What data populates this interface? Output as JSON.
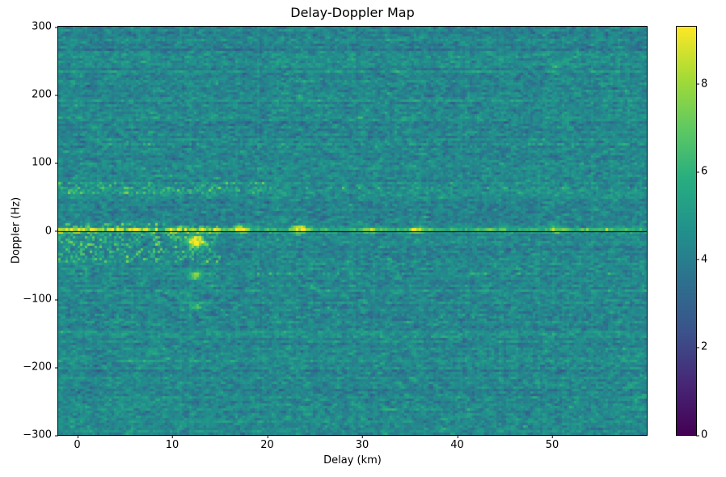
{
  "chart_data": {
    "type": "heatmap",
    "title": "Delay-Doppler Map",
    "xlabel": "Delay (km)",
    "ylabel": "Doppler (Hz)",
    "x_range": [
      -2,
      60
    ],
    "y_range": [
      -300,
      300
    ],
    "x_ticks": [
      0,
      10,
      20,
      30,
      40,
      50
    ],
    "y_ticks": [
      300,
      200,
      100,
      0,
      -100,
      -200,
      -300
    ],
    "colormap": "viridis",
    "value_range": [
      0,
      9.3
    ],
    "colorbar_ticks": [
      0,
      2,
      4,
      6,
      8
    ],
    "zero_doppler_line": {
      "doppler_hz": 0,
      "color": "#000000"
    },
    "noise": {
      "mean": 4.35,
      "pixel_std": 0.55,
      "row_std": 0.22,
      "col_std": 0.08,
      "seed": 42,
      "grid": [
        243,
        168
      ]
    },
    "features": [
      {
        "type": "ridge",
        "doppler": 1,
        "halfwidth": 3,
        "amp": 3.4,
        "fade_after": 15,
        "fade_factor": 0.45,
        "sporadic_prob": 0.03
      },
      {
        "type": "streak",
        "doppler": 62,
        "halfwidth": 3,
        "amp": 1.2,
        "prob": 0.4
      },
      {
        "type": "streak",
        "doppler": -62,
        "halfwidth": 3,
        "amp": 1.0,
        "prob": 0.35
      },
      {
        "type": "streak",
        "doppler": 125,
        "halfwidth": 3,
        "amp": 0.8,
        "prob": 0.3
      },
      {
        "type": "streak",
        "doppler": -125,
        "halfwidth": 3,
        "amp": 0.8,
        "prob": 0.3
      },
      {
        "type": "streak",
        "doppler": 190,
        "halfwidth": 3,
        "amp": 0.5,
        "prob": 0.2
      },
      {
        "type": "streak",
        "doppler": -190,
        "halfwidth": 3,
        "amp": 0.5,
        "prob": 0.2
      },
      {
        "type": "streak",
        "doppler": -250,
        "halfwidth": 3,
        "amp": 0.5,
        "prob": 0.2
      },
      {
        "type": "speckle",
        "delay_range": [
          -2,
          15
        ],
        "doppler_range": [
          -45,
          12
        ],
        "amp": 2.0,
        "prob": 0.3
      },
      {
        "type": "speckle",
        "delay_range": [
          -2,
          20
        ],
        "doppler_range": [
          55,
          70
        ],
        "amp": 1.4,
        "prob": 0.35
      },
      {
        "type": "blob",
        "delay": 12.5,
        "doppler": -15,
        "sx": 0.6,
        "sy": 7,
        "amp": 4.8
      },
      {
        "type": "blob",
        "delay": 12.4,
        "doppler": -65,
        "sx": 0.5,
        "sy": 5,
        "amp": 3.2
      },
      {
        "type": "blob",
        "delay": 12.6,
        "doppler": -110,
        "sx": 0.4,
        "sy": 4,
        "amp": 2.2
      },
      {
        "type": "blob",
        "delay": 17.2,
        "doppler": 3,
        "sx": 0.6,
        "sy": 4,
        "amp": 3.5
      },
      {
        "type": "blob",
        "delay": 23.5,
        "doppler": 2,
        "sx": 0.6,
        "sy": 4,
        "amp": 4.0
      },
      {
        "type": "blob",
        "delay": 30.8,
        "doppler": 1,
        "sx": 0.5,
        "sy": 3,
        "amp": 3.0
      },
      {
        "type": "blob",
        "delay": 36.0,
        "doppler": 1,
        "sx": 0.5,
        "sy": 3,
        "amp": 3.2
      },
      {
        "type": "blob",
        "delay": 50.6,
        "doppler": 1,
        "sx": 0.5,
        "sy": 3,
        "amp": 3.0
      }
    ],
    "description": "Noisy viridis delay-Doppler map: teal/green background noise around level 4-5, a bright yellow clutter ridge along 0 Hz Doppler (strongest for delays below 15 km) overlaid by a thin black zero-Doppler line, a speckled clutter patch at delays -2 to 15 km between -45 and +12 Hz, a bright target near 12.5 km / -15 Hz, sporadic bright returns on the zero line near 17, 23.5, 31, 36 and 50.5 km, and faint horizontal harmonic streaks near ±62, ±125, ±190 and -250 Hz."
  },
  "axes": {
    "x_tick_labels": [
      "0",
      "10",
      "20",
      "30",
      "40",
      "50"
    ],
    "y_tick_labels": [
      "300",
      "200",
      "100",
      "0",
      "−100",
      "−200",
      "−300"
    ],
    "colorbar_tick_labels": [
      "8",
      "6",
      "4",
      "2",
      "0"
    ]
  },
  "colors": {
    "viridis_low": "#440154",
    "viridis_mid": "#21918c",
    "viridis_high": "#fde725",
    "axis": "#000000",
    "background": "#ffffff"
  }
}
